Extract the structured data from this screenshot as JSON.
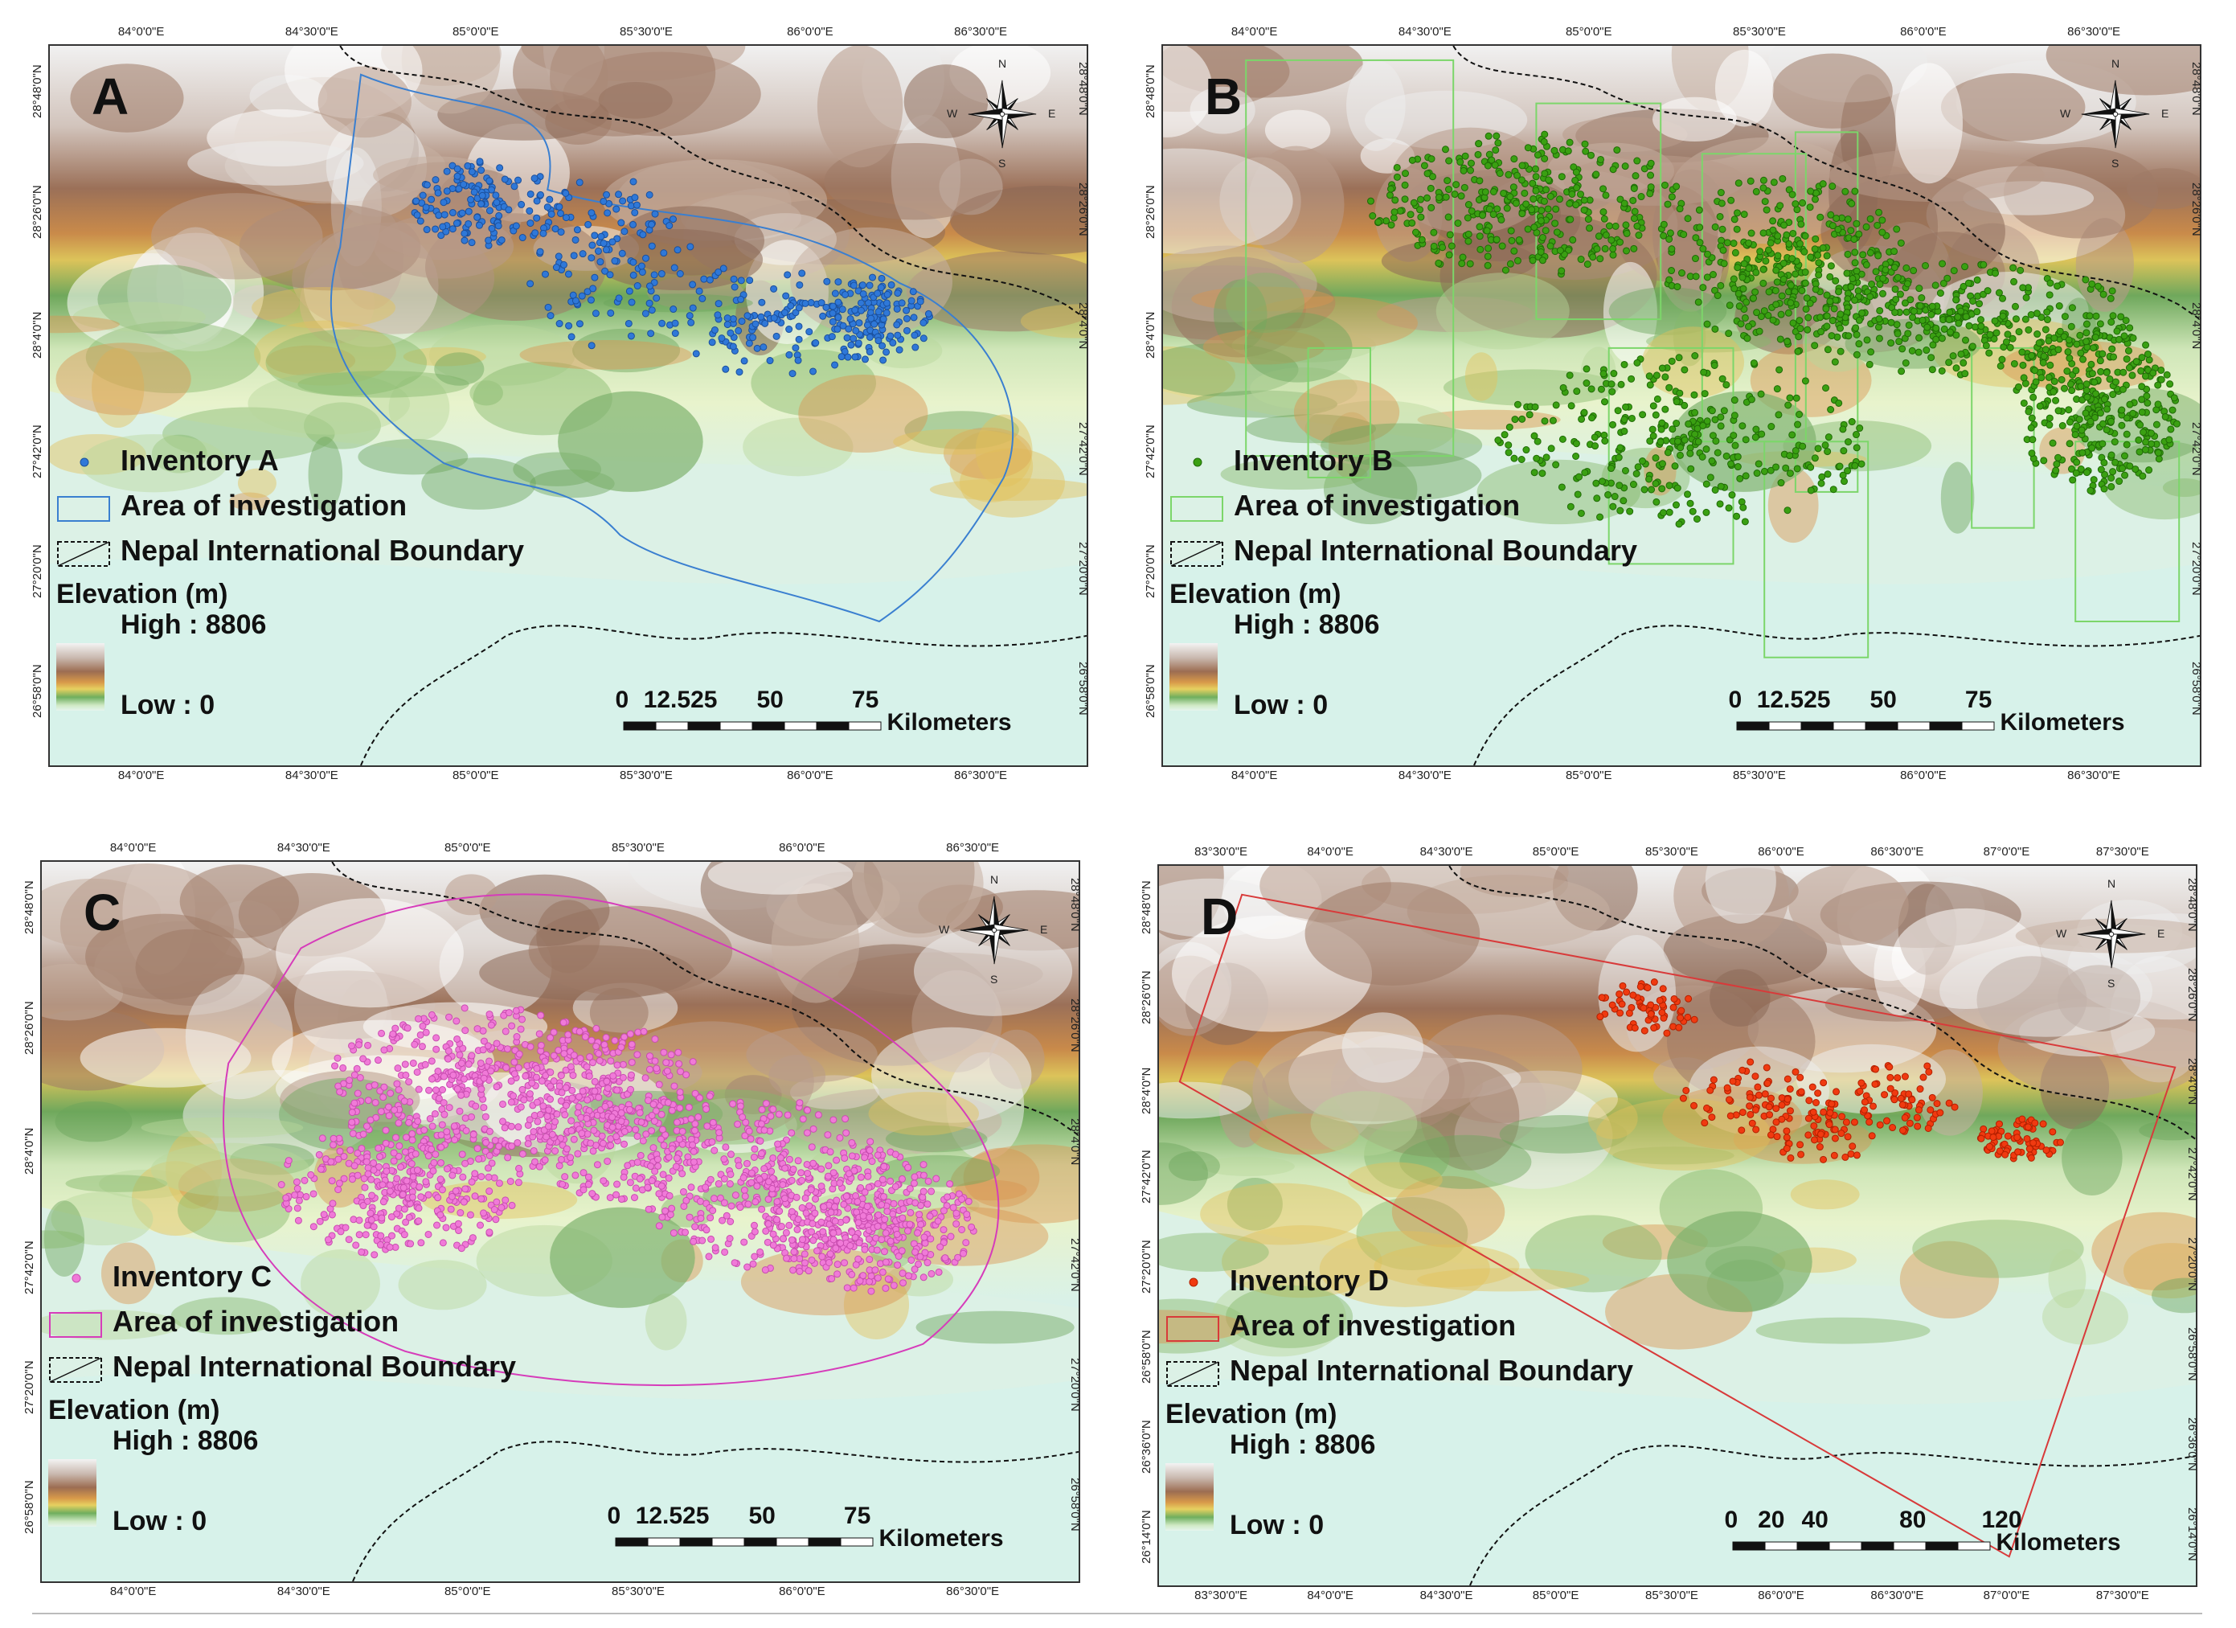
{
  "panels": [
    {
      "id": "A",
      "letter": "A",
      "legend": {
        "inventory": "Inventory A",
        "area": "Area of investigation",
        "boundary": "Nepal International Boundary",
        "elev_title": "Elevation (m)",
        "high": "High : 8806",
        "low": "Low : 0"
      },
      "scale": {
        "labels": [
          "0",
          "12.525",
          "50",
          "75"
        ],
        "unit": "Kilometers"
      },
      "top_ticks": [
        "84°0'0\"E",
        "84°30'0\"E",
        "85°0'0\"E",
        "85°30'0\"E",
        "86°0'0\"E",
        "86°30'0\"E"
      ],
      "bottom_ticks": [
        "84°0'0\"E",
        "84°30'0\"E",
        "85°0'0\"E",
        "85°30'0\"E",
        "86°0'0\"E",
        "86°30'0\"E"
      ],
      "left_ticks": [
        "28°48'0\"N",
        "28°26'0\"N",
        "28°4'0\"N",
        "27°42'0\"N",
        "27°20'0\"N",
        "26°58'0\"N"
      ],
      "right_ticks": [
        "28°48'0\"N",
        "28°26'0\"N",
        "28°4'0\"N",
        "27°42'0\"N",
        "27°20'0\"N",
        "26°58'0\"N"
      ],
      "color": "#2f78d8",
      "stroke": "#1a4f9c",
      "area_color": "#3a7fd0"
    },
    {
      "id": "B",
      "letter": "B",
      "legend": {
        "inventory": "Inventory B",
        "area": "Area of investigation",
        "boundary": "Nepal International Boundary",
        "elev_title": "Elevation (m)",
        "high": "High : 8806",
        "low": "Low : 0"
      },
      "scale": {
        "labels": [
          "0",
          "12.525",
          "50",
          "75"
        ],
        "unit": "Kilometers"
      },
      "top_ticks": [
        "84°0'0\"E",
        "84°30'0\"E",
        "85°0'0\"E",
        "85°30'0\"E",
        "86°0'0\"E",
        "86°30'0\"E"
      ],
      "bottom_ticks": [
        "84°0'0\"E",
        "84°30'0\"E",
        "85°0'0\"E",
        "85°30'0\"E",
        "86°0'0\"E",
        "86°30'0\"E"
      ],
      "left_ticks": [
        "28°48'0\"N",
        "28°26'0\"N",
        "28°4'0\"N",
        "27°42'0\"N",
        "27°20'0\"N",
        "26°58'0\"N"
      ],
      "right_ticks": [
        "28°48'0\"N",
        "28°26'0\"N",
        "28°4'0\"N",
        "27°42'0\"N",
        "27°20'0\"N",
        "26°58'0\"N"
      ],
      "color": "#3aa012",
      "stroke": "#1f6a06",
      "area_color": "#7cd66a"
    },
    {
      "id": "C",
      "letter": "C",
      "legend": {
        "inventory": "Inventory C",
        "area": "Area of investigation",
        "boundary": "Nepal International Boundary",
        "elev_title": "Elevation (m)",
        "high": "High : 8806",
        "low": "Low : 0"
      },
      "scale": {
        "labels": [
          "0",
          "12.525",
          "50",
          "75"
        ],
        "unit": "Kilometers"
      },
      "top_ticks": [
        "84°0'0\"E",
        "84°30'0\"E",
        "85°0'0\"E",
        "85°30'0\"E",
        "86°0'0\"E",
        "86°30'0\"E"
      ],
      "bottom_ticks": [
        "84°0'0\"E",
        "84°30'0\"E",
        "85°0'0\"E",
        "85°30'0\"E",
        "86°0'0\"E",
        "86°30'0\"E"
      ],
      "left_ticks": [
        "28°48'0\"N",
        "28°26'0\"N",
        "28°4'0\"N",
        "27°42'0\"N",
        "27°20'0\"N",
        "26°58'0\"N"
      ],
      "right_ticks": [
        "28°48'0\"N",
        "28°26'0\"N",
        "28°4'0\"N",
        "27°42'0\"N",
        "27°20'0\"N",
        "26°58'0\"N"
      ],
      "color": "#f07ad8",
      "stroke": "#c94db0",
      "area_color": "#d63cba"
    },
    {
      "id": "D",
      "letter": "D",
      "legend": {
        "inventory": "Inventory D",
        "area": "Area of investigation",
        "boundary": "Nepal International Boundary",
        "elev_title": "Elevation (m)",
        "high": "High : 8806",
        "low": "Low : 0"
      },
      "scale": {
        "labels": [
          "0",
          "20",
          "40",
          "80",
          "120"
        ],
        "unit": "Kilometers"
      },
      "top_ticks": [
        "83°30'0\"E",
        "84°0'0\"E",
        "84°30'0\"E",
        "85°0'0\"E",
        "85°30'0\"E",
        "86°0'0\"E",
        "86°30'0\"E",
        "87°0'0\"E",
        "87°30'0\"E"
      ],
      "bottom_ticks": [
        "83°30'0\"E",
        "84°0'0\"E",
        "84°30'0\"E",
        "85°0'0\"E",
        "85°30'0\"E",
        "86°0'0\"E",
        "86°30'0\"E",
        "87°0'0\"E",
        "87°30'0\"E"
      ],
      "left_ticks": [
        "28°48'0\"N",
        "28°26'0\"N",
        "28°4'0\"N",
        "27°42'0\"N",
        "27°20'0\"N",
        "26°58'0\"N",
        "26°36'0\"N",
        "26°14'0\"N"
      ],
      "right_ticks": [
        "28°48'0\"N",
        "28°26'0\"N",
        "28°4'0\"N",
        "27°42'0\"N",
        "27°20'0\"N",
        "26°58'0\"N",
        "26°36'0\"N",
        "26°14'0\"N"
      ],
      "color": "#f03a10",
      "stroke": "#b32000",
      "area_color": "#d83a3a"
    }
  ],
  "compass": {
    "n": "N",
    "s": "S",
    "e": "E",
    "w": "W"
  }
}
